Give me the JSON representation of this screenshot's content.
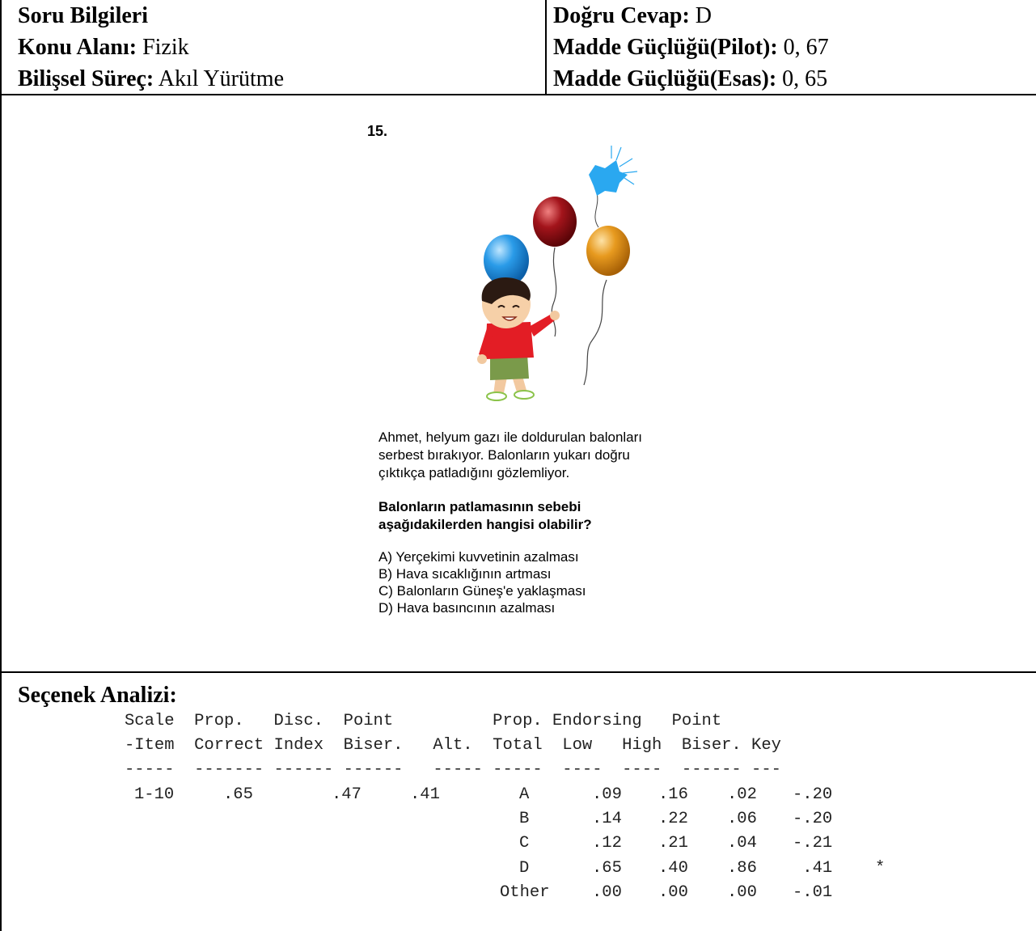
{
  "info": {
    "title": "Soru Bilgileri",
    "subject_label": "Konu Alanı:",
    "subject_value": " Fizik",
    "process_label": "Bilişsel Süreç:",
    "process_value": " Akıl Yürütme",
    "answer_label": "Doğru Cevap:",
    "answer_value": " D",
    "pilot_label": "Madde Güçlüğü(Pilot):",
    "pilot_value": " 0, 67",
    "main_label": "Madde Güçlüğü(Esas):",
    "main_value": " 0, 65"
  },
  "question": {
    "number": "15.",
    "text_lines": [
      "Ahmet, helyum gazı ile doldurulan balonları",
      "serbest bırakıyor. Balonların yukarı doğru",
      "çıktıkça patladığını gözlemliyor."
    ],
    "stem_lines": [
      "Balonların patlamasının sebebi",
      "aşağıdakilerden hangisi olabilir?"
    ],
    "options": [
      "A) Yerçekimi kuvvetinin azalması",
      "B) Hava sıcaklığının artması",
      "C) Balonların Güneş'e yaklaşması",
      "D) Hava basıncının azalması"
    ]
  },
  "illustration": {
    "colors": {
      "blue": "#2a9be8",
      "red": "#a3141b",
      "orange": "#e79a1f",
      "burst": "#2aa8f0",
      "shirt": "#e31d25",
      "shorts": "#7a9a4a"
    },
    "icon": "boy-with-balloons"
  },
  "analysis": {
    "title": "Seçenek Analizi:",
    "header_lines": [
      "Scale  Prop.   Disc.  Point          Prop. Endorsing   Point",
      "-Item  Correct Index  Biser.   Alt.  Total  Low   High  Biser. Key",
      "-----  ------- ------ ------   ----- -----  ----  ----  ------ ---"
    ],
    "item": {
      "scale": "1-10",
      "prop_correct": ".65",
      "disc_index": ".47",
      "point_biser": ".41"
    },
    "rows": [
      {
        "alt": "A",
        "total": ".09",
        "low": ".16",
        "high": ".02",
        "biser": "-.20",
        "key": ""
      },
      {
        "alt": "B",
        "total": ".14",
        "low": ".22",
        "high": ".06",
        "biser": "-.20",
        "key": ""
      },
      {
        "alt": "C",
        "total": ".12",
        "low": ".21",
        "high": ".04",
        "biser": "-.21",
        "key": ""
      },
      {
        "alt": "D",
        "total": ".65",
        "low": ".40",
        "high": ".86",
        "biser": " .41",
        "key": "*"
      },
      {
        "alt": "Other",
        "total": ".00",
        "low": ".00",
        "high": ".00",
        "biser": "-.01",
        "key": ""
      }
    ]
  }
}
